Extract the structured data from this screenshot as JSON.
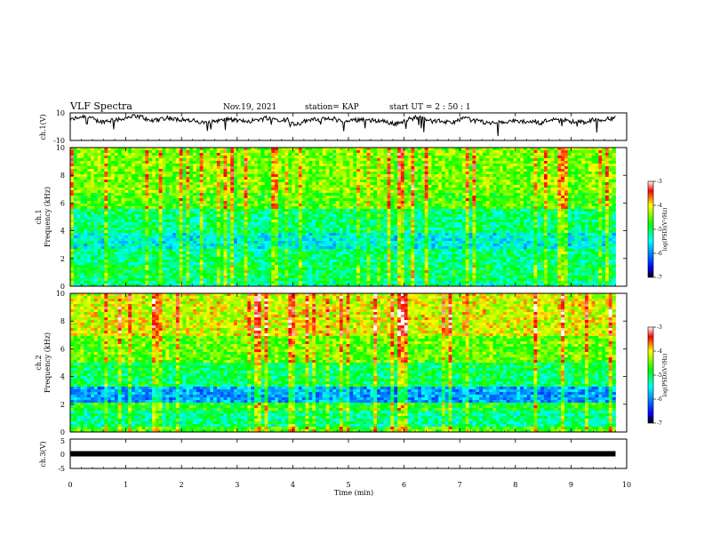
{
  "header": {
    "title": "VLF Spectra",
    "date": "Nov.19, 2021",
    "station": "station= KAP",
    "start": "start  UT =  2 : 50 : 1"
  },
  "chart_data": [
    {
      "type": "line",
      "name": "ch1-voltage",
      "ylabel": "ch.1(V)",
      "ylim": [
        -10,
        10
      ],
      "yticks": [
        "10",
        "-10"
      ],
      "xlim": [
        0,
        10
      ],
      "baseline_v": 4.5,
      "color": "#000000"
    },
    {
      "type": "heatmap",
      "name": "ch1-spectrogram",
      "ylabel": "ch.1",
      "ylabel2": "Frequency (kHz)",
      "ylim": [
        0,
        10
      ],
      "yticks": [
        "0",
        "2",
        "4",
        "6",
        "8",
        "10"
      ],
      "xlim": [
        0,
        10
      ],
      "data_end_min": 9.8,
      "colorbar": {
        "label": "log(PSD)(V²/Hz)",
        "range": [
          -7,
          -3
        ],
        "ticks": [
          "-3",
          "-4",
          "-5",
          "-6",
          "-7"
        ]
      }
    },
    {
      "type": "heatmap",
      "name": "ch2-spectrogram",
      "ylabel": "ch.2",
      "ylabel2": "Frequency (kHz)",
      "ylim": [
        0,
        10
      ],
      "yticks": [
        "0",
        "2",
        "4",
        "6",
        "8",
        "10"
      ],
      "xlim": [
        0,
        10
      ],
      "data_end_min": 9.8,
      "colorbar": {
        "label": "log(PSD)(V²/Hz)",
        "range": [
          -7,
          -3
        ],
        "ticks": [
          "-3",
          "-4",
          "-5",
          "-6",
          "-7"
        ]
      }
    },
    {
      "type": "line",
      "name": "ch3-voltage",
      "ylabel": "ch.3(V)",
      "ylim": [
        -5,
        5
      ],
      "yticks": [
        "5",
        "0",
        "-5"
      ],
      "xlim": [
        0,
        10
      ],
      "level_v": 0,
      "xlabel": "Time (min)",
      "xticks": [
        "0",
        "1",
        "2",
        "3",
        "4",
        "5",
        "6",
        "7",
        "8",
        "9",
        "10"
      ],
      "color": "#000000"
    }
  ]
}
